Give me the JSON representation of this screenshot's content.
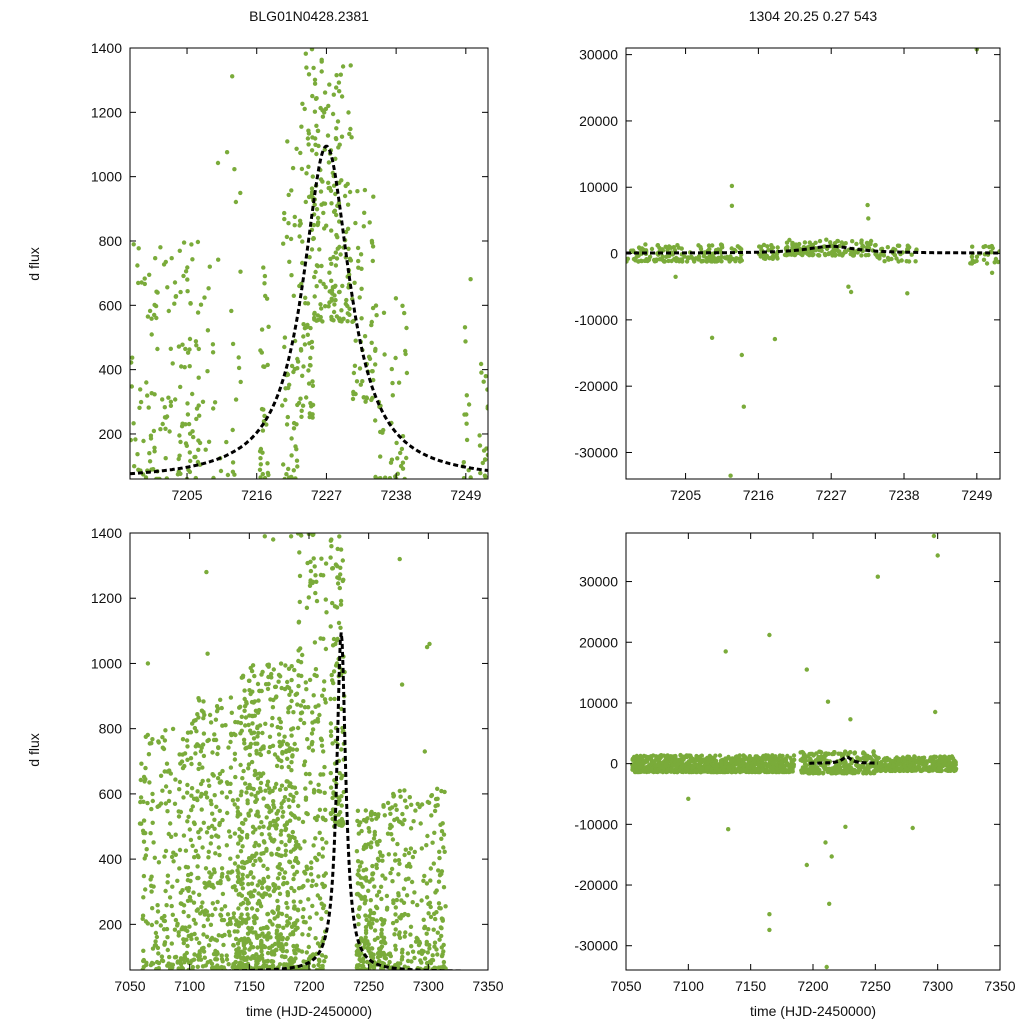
{
  "figure": {
    "title_left": "BLG01N0428.2381",
    "title_right": "1304  20.25  0.27  543",
    "ylabel": "d flux",
    "xlabel": "time (HJD-2450000)"
  },
  "colors": {
    "points": "#7aab3a",
    "model": "#000000",
    "axes": "#000000"
  },
  "chart_data": [
    {
      "id": "top-left",
      "type": "scatter",
      "xlim": [
        7196,
        7252.5
      ],
      "ylim": [
        60,
        1400
      ],
      "xticks": [
        7205,
        7216,
        7227,
        7238,
        7249
      ],
      "xtick_labels": [
        "7205",
        "7216",
        "7227",
        "7238",
        "7249"
      ],
      "yticks": [
        200,
        400,
        600,
        800,
        1000,
        1200,
        1400
      ],
      "ytick_labels": [
        "200",
        "400",
        "600",
        "800",
        "1000",
        "1200",
        "1400"
      ],
      "xlabel": "",
      "ylabel": "d flux",
      "series": [
        {
          "name": "data",
          "style": "points",
          "clusters": [
            [
              7196,
              7209.5,
              160,
              60,
              800
            ],
            [
              7209.8,
              7213.5,
              22,
              60,
              1350
            ],
            [
              7216.5,
              7218,
              30,
              60,
              760
            ],
            [
              7220,
              7222.5,
              55,
              60,
              1150
            ],
            [
              7222.5,
              7225,
              80,
              250,
              1400
            ],
            [
              7225,
              7231,
              180,
              550,
              1400
            ],
            [
              7231,
              7234.5,
              55,
              300,
              1000
            ],
            [
              7234.5,
              7240,
              50,
              60,
              650
            ],
            [
              7248.5,
              7250,
              14,
              60,
              700
            ],
            [
              7251,
              7252.5,
              18,
              60,
              420
            ]
          ]
        },
        {
          "name": "model",
          "style": "dashed-line",
          "peak_time": 7227,
          "baseline": 55,
          "amplitude": 1040,
          "tE": 4.5
        }
      ]
    },
    {
      "id": "top-right",
      "type": "scatter",
      "xlim": [
        7196,
        7252.5
      ],
      "ylim": [
        -34000,
        31000
      ],
      "xticks": [
        7205,
        7216,
        7227,
        7238,
        7249
      ],
      "xtick_labels": [
        "7205",
        "7216",
        "7227",
        "7238",
        "7249"
      ],
      "yticks": [
        -30000,
        -20000,
        -10000,
        0,
        10000,
        20000,
        30000
      ],
      "ytick_labels": [
        "-30000",
        "-20000",
        "-10000",
        "0",
        "10000",
        "20000",
        "30000"
      ],
      "xlabel": "",
      "ylabel": "",
      "series": [
        {
          "name": "data",
          "style": "points",
          "clusters": [
            [
              7196,
              7213.5,
              170,
              -1200,
              1400
            ],
            [
              7216,
              7219,
              30,
              -800,
              1500
            ],
            [
              7220,
              7234,
              150,
              -300,
              2100
            ],
            [
              7234,
              7240,
              40,
              -1200,
              1200
            ],
            [
              7248,
              7252.5,
              25,
              -1500,
              1200
            ]
          ],
          "outliers": [
            [
              7203.5,
              -3500
            ],
            [
              7209,
              -12700
            ],
            [
              7212,
              10200
            ],
            [
              7212,
              7200
            ],
            [
              7213.5,
              -15300
            ],
            [
              7213.8,
              -23100
            ],
            [
              7211.8,
              -33500
            ],
            [
              7218.5,
              -12900
            ],
            [
              7230,
              -5800
            ],
            [
              7229.6,
              -5000
            ],
            [
              7232.5,
              7300
            ],
            [
              7232.6,
              5300
            ],
            [
              7238.5,
              -6000
            ],
            [
              7249,
              30800
            ],
            [
              7251.3,
              -2900
            ]
          ]
        },
        {
          "name": "model",
          "style": "dashed-line",
          "peak_time": 7227,
          "baseline": 55,
          "amplitude": 1040,
          "tE": 4.5
        }
      ]
    },
    {
      "id": "bottom-left",
      "type": "scatter",
      "xlim": [
        7050,
        7350
      ],
      "ylim": [
        60,
        1400
      ],
      "xticks": [
        7050,
        7100,
        7150,
        7200,
        7250,
        7300,
        7350
      ],
      "xtick_labels": [
        "7050",
        "7100",
        "7150",
        "7200",
        "7250",
        "7300",
        "7350"
      ],
      "yticks": [
        200,
        400,
        600,
        800,
        1000,
        1200,
        1400
      ],
      "ytick_labels": [
        "200",
        "400",
        "600",
        "800",
        "1000",
        "1200",
        "1400"
      ],
      "xlabel": "time (HJD-2450000)",
      "ylabel": "d flux",
      "series": [
        {
          "name": "data",
          "style": "points",
          "clusters": [
            [
              7058,
              7100,
              220,
              60,
              800
            ],
            [
              7100,
              7140,
              300,
              60,
              900
            ],
            [
              7140,
              7190,
              700,
              60,
              1000
            ],
            [
              7190,
              7215,
              220,
              60,
              1400
            ],
            [
              7218,
              7230,
              110,
              500,
              1400
            ],
            [
              7240,
              7262,
              200,
              60,
              550
            ],
            [
              7262,
              7315,
              260,
              60,
              620
            ]
          ],
          "outliers": [
            [
              7065,
              1000
            ],
            [
              7114,
              1280
            ],
            [
              7115,
              1030
            ],
            [
              7163,
              1390
            ],
            [
              7170,
              1380
            ],
            [
              7185,
              1390
            ],
            [
              7276,
              1320
            ],
            [
              7278,
              935
            ],
            [
              7299,
              1050
            ],
            [
              7301,
              1060
            ],
            [
              7297,
              730
            ]
          ]
        },
        {
          "name": "model",
          "style": "dashed-line",
          "peak_time": 7227,
          "baseline": 55,
          "amplitude": 1040,
          "tE": 4.5
        }
      ]
    },
    {
      "id": "bottom-right",
      "type": "scatter",
      "xlim": [
        7050,
        7350
      ],
      "ylim": [
        -34000,
        38000
      ],
      "xticks": [
        7050,
        7100,
        7150,
        7200,
        7250,
        7300,
        7350
      ],
      "xtick_labels": [
        "7050",
        "7100",
        "7150",
        "7200",
        "7250",
        "7300",
        "7350"
      ],
      "yticks": [
        -30000,
        -20000,
        -10000,
        0,
        10000,
        20000,
        30000
      ],
      "ytick_labels": [
        "-30000",
        "-20000",
        "-10000",
        "0",
        "10000",
        "20000",
        "30000"
      ],
      "xlabel": "time (HJD-2450000)",
      "ylabel": "",
      "series": [
        {
          "name": "data",
          "style": "points",
          "clusters": [
            [
              7055,
              7185,
              900,
              -1400,
              1400
            ],
            [
              7190,
              7250,
              260,
              -1600,
              2000
            ],
            [
              7250,
              7315,
              320,
              -1200,
              1200
            ]
          ],
          "outliers": [
            [
              7130,
              18500
            ],
            [
              7165,
              21200
            ],
            [
              7195,
              15500
            ],
            [
              7252,
              30800
            ],
            [
              7297,
              37500
            ],
            [
              7300,
              34300
            ],
            [
              7298,
              8500
            ],
            [
              7165,
              -24800
            ],
            [
              7165,
              -27400
            ],
            [
              7213,
              -23100
            ],
            [
              7211,
              -33500
            ],
            [
              7195,
              -16700
            ],
            [
              7210,
              -13000
            ],
            [
              7215,
              -15300
            ],
            [
              7280,
              -10600
            ],
            [
              7132,
              -10800
            ],
            [
              7100,
              -5800
            ],
            [
              7226,
              -10400
            ],
            [
              7212,
              10200
            ],
            [
              7230,
              7300
            ]
          ]
        },
        {
          "name": "model",
          "style": "dashed-line",
          "xrange": [
            7197,
            7252
          ],
          "peak_time": 7227,
          "baseline": 55,
          "amplitude": 1040,
          "tE": 4.5
        }
      ]
    }
  ]
}
